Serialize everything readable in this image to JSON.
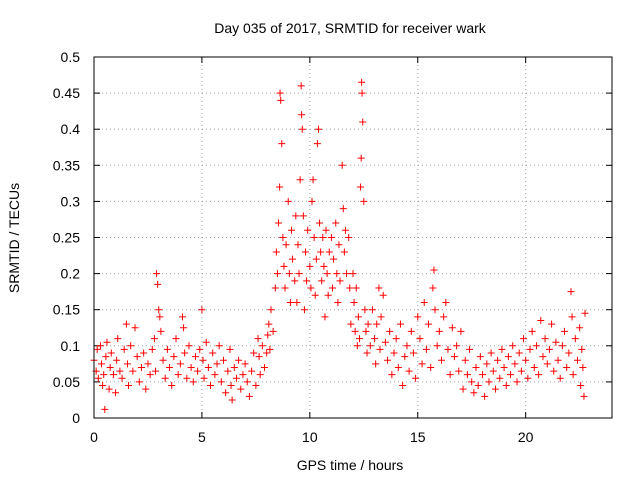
{
  "chart_data": {
    "type": "scatter",
    "title": "Day 035 of 2017, SRMTID for receiver wark",
    "xlabel": "GPS time / hours",
    "ylabel": "SRMTID / TECUs",
    "xlim": [
      0,
      24
    ],
    "ylim": [
      0,
      0.5
    ],
    "xticks": [
      0,
      5,
      10,
      15,
      20
    ],
    "yticks": [
      0,
      0.05,
      0.1,
      0.15,
      0.2,
      0.25,
      0.3,
      0.35,
      0.4,
      0.45,
      0.5
    ],
    "x_tick_labels": [
      "0",
      "5",
      "10",
      "15",
      "20"
    ],
    "y_tick_labels": [
      "0",
      "0.05",
      "0.1",
      "0.15",
      "0.2",
      "0.25",
      "0.3",
      "0.35",
      "0.4",
      "0.45",
      "0.5"
    ],
    "grid": true,
    "marker": "+",
    "series": [
      {
        "name": "SRMTID",
        "color": "#ff0000",
        "points": [
          [
            0.0,
            0.08
          ],
          [
            0.1,
            0.065
          ],
          [
            0.15,
            0.095
          ],
          [
            0.2,
            0.055
          ],
          [
            0.3,
            0.1
          ],
          [
            0.35,
            0.075
          ],
          [
            0.4,
            0.045
          ],
          [
            0.45,
            0.06
          ],
          [
            0.5,
            0.012
          ],
          [
            0.55,
            0.085
          ],
          [
            0.6,
            0.105
          ],
          [
            0.7,
            0.04
          ],
          [
            0.75,
            0.07
          ],
          [
            0.8,
            0.09
          ],
          [
            0.9,
            0.06
          ],
          [
            1.0,
            0.035
          ],
          [
            1.05,
            0.08
          ],
          [
            1.1,
            0.11
          ],
          [
            1.2,
            0.065
          ],
          [
            1.3,
            0.055
          ],
          [
            1.4,
            0.095
          ],
          [
            1.5,
            0.13
          ],
          [
            1.55,
            0.075
          ],
          [
            1.6,
            0.045
          ],
          [
            1.7,
            0.1
          ],
          [
            1.8,
            0.065
          ],
          [
            1.9,
            0.125
          ],
          [
            2.0,
            0.085
          ],
          [
            2.1,
            0.05
          ],
          [
            2.2,
            0.07
          ],
          [
            2.3,
            0.09
          ],
          [
            2.4,
            0.04
          ],
          [
            2.5,
            0.075
          ],
          [
            2.6,
            0.06
          ],
          [
            2.7,
            0.095
          ],
          [
            2.8,
            0.11
          ],
          [
            2.85,
            0.065
          ],
          [
            2.9,
            0.2
          ],
          [
            2.95,
            0.185
          ],
          [
            3.0,
            0.15
          ],
          [
            3.05,
            0.14
          ],
          [
            3.1,
            0.12
          ],
          [
            3.2,
            0.08
          ],
          [
            3.3,
            0.055
          ],
          [
            3.4,
            0.095
          ],
          [
            3.5,
            0.07
          ],
          [
            3.6,
            0.045
          ],
          [
            3.7,
            0.085
          ],
          [
            3.8,
            0.11
          ],
          [
            3.9,
            0.06
          ],
          [
            4.0,
            0.075
          ],
          [
            4.1,
            0.14
          ],
          [
            4.15,
            0.125
          ],
          [
            4.2,
            0.09
          ],
          [
            4.3,
            0.055
          ],
          [
            4.4,
            0.1
          ],
          [
            4.5,
            0.07
          ],
          [
            4.6,
            0.05
          ],
          [
            4.7,
            0.085
          ],
          [
            4.8,
            0.065
          ],
          [
            4.9,
            0.095
          ],
          [
            5.0,
            0.15
          ],
          [
            5.05,
            0.08
          ],
          [
            5.1,
            0.055
          ],
          [
            5.2,
            0.105
          ],
          [
            5.3,
            0.07
          ],
          [
            5.4,
            0.045
          ],
          [
            5.5,
            0.09
          ],
          [
            5.6,
            0.06
          ],
          [
            5.7,
            0.075
          ],
          [
            5.8,
            0.1
          ],
          [
            5.9,
            0.05
          ],
          [
            6.0,
            0.08
          ],
          [
            6.1,
            0.035
          ],
          [
            6.2,
            0.065
          ],
          [
            6.3,
            0.095
          ],
          [
            6.35,
            0.045
          ],
          [
            6.4,
            0.025
          ],
          [
            6.5,
            0.07
          ],
          [
            6.6,
            0.055
          ],
          [
            6.7,
            0.08
          ],
          [
            6.8,
            0.04
          ],
          [
            6.9,
            0.06
          ],
          [
            7.0,
            0.075
          ],
          [
            7.1,
            0.05
          ],
          [
            7.2,
            0.03
          ],
          [
            7.3,
            0.065
          ],
          [
            7.4,
            0.09
          ],
          [
            7.5,
            0.045
          ],
          [
            7.6,
            0.11
          ],
          [
            7.65,
            0.085
          ],
          [
            7.7,
            0.06
          ],
          [
            7.8,
            0.1
          ],
          [
            7.9,
            0.07
          ],
          [
            8.0,
            0.09
          ],
          [
            8.05,
            0.115
          ],
          [
            8.1,
            0.13
          ],
          [
            8.15,
            0.095
          ],
          [
            8.2,
            0.15
          ],
          [
            8.3,
            0.12
          ],
          [
            8.4,
            0.18
          ],
          [
            8.45,
            0.23
          ],
          [
            8.5,
            0.2
          ],
          [
            8.55,
            0.27
          ],
          [
            8.6,
            0.32
          ],
          [
            8.62,
            0.45
          ],
          [
            8.65,
            0.44
          ],
          [
            8.7,
            0.38
          ],
          [
            8.75,
            0.25
          ],
          [
            8.8,
            0.21
          ],
          [
            8.85,
            0.18
          ],
          [
            8.9,
            0.24
          ],
          [
            9.0,
            0.3
          ],
          [
            9.05,
            0.2
          ],
          [
            9.1,
            0.16
          ],
          [
            9.15,
            0.26
          ],
          [
            9.2,
            0.22
          ],
          [
            9.3,
            0.19
          ],
          [
            9.35,
            0.28
          ],
          [
            9.4,
            0.16
          ],
          [
            9.45,
            0.24
          ],
          [
            9.5,
            0.2
          ],
          [
            9.55,
            0.33
          ],
          [
            9.6,
            0.46
          ],
          [
            9.62,
            0.42
          ],
          [
            9.65,
            0.4
          ],
          [
            9.7,
            0.28
          ],
          [
            9.75,
            0.15
          ],
          [
            9.8,
            0.23
          ],
          [
            9.85,
            0.19
          ],
          [
            9.9,
            0.26
          ],
          [
            10.0,
            0.21
          ],
          [
            10.05,
            0.18
          ],
          [
            10.1,
            0.3
          ],
          [
            10.15,
            0.33
          ],
          [
            10.2,
            0.25
          ],
          [
            10.25,
            0.17
          ],
          [
            10.3,
            0.22
          ],
          [
            10.35,
            0.38
          ],
          [
            10.4,
            0.4
          ],
          [
            10.45,
            0.27
          ],
          [
            10.5,
            0.23
          ],
          [
            10.55,
            0.19
          ],
          [
            10.6,
            0.25
          ],
          [
            10.65,
            0.21
          ],
          [
            10.7,
            0.14
          ],
          [
            10.75,
            0.26
          ],
          [
            10.8,
            0.2
          ],
          [
            10.85,
            0.17
          ],
          [
            10.9,
            0.23
          ],
          [
            11.0,
            0.25
          ],
          [
            11.05,
            0.18
          ],
          [
            11.1,
            0.22
          ],
          [
            11.2,
            0.27
          ],
          [
            11.25,
            0.2
          ],
          [
            11.3,
            0.16
          ],
          [
            11.35,
            0.24
          ],
          [
            11.4,
            0.19
          ],
          [
            11.5,
            0.35
          ],
          [
            11.55,
            0.29
          ],
          [
            11.6,
            0.23
          ],
          [
            11.65,
            0.26
          ],
          [
            11.7,
            0.2
          ],
          [
            11.8,
            0.25
          ],
          [
            11.85,
            0.18
          ],
          [
            11.9,
            0.13
          ],
          [
            12.0,
            0.2
          ],
          [
            12.05,
            0.16
          ],
          [
            12.1,
            0.12
          ],
          [
            12.15,
            0.18
          ],
          [
            12.2,
            0.1
          ],
          [
            12.25,
            0.14
          ],
          [
            12.3,
            0.11
          ],
          [
            12.35,
            0.32
          ],
          [
            12.38,
            0.36
          ],
          [
            12.4,
            0.465
          ],
          [
            12.42,
            0.45
          ],
          [
            12.45,
            0.41
          ],
          [
            12.5,
            0.3
          ],
          [
            12.55,
            0.15
          ],
          [
            12.6,
            0.12
          ],
          [
            12.65,
            0.09
          ],
          [
            12.7,
            0.13
          ],
          [
            12.8,
            0.1
          ],
          [
            12.9,
            0.15
          ],
          [
            13.0,
            0.11
          ],
          [
            13.05,
            0.075
          ],
          [
            13.1,
            0.13
          ],
          [
            13.2,
            0.18
          ],
          [
            13.25,
            0.095
          ],
          [
            13.3,
            0.14
          ],
          [
            13.4,
            0.17
          ],
          [
            13.5,
            0.105
          ],
          [
            13.6,
            0.08
          ],
          [
            13.7,
            0.12
          ],
          [
            13.8,
            0.06
          ],
          [
            13.9,
            0.09
          ],
          [
            14.0,
            0.11
          ],
          [
            14.1,
            0.07
          ],
          [
            14.2,
            0.13
          ],
          [
            14.3,
            0.045
          ],
          [
            14.4,
            0.085
          ],
          [
            14.5,
            0.1
          ],
          [
            14.6,
            0.065
          ],
          [
            14.7,
            0.12
          ],
          [
            14.8,
            0.09
          ],
          [
            14.9,
            0.055
          ],
          [
            15.0,
            0.14
          ],
          [
            15.1,
            0.11
          ],
          [
            15.2,
            0.075
          ],
          [
            15.3,
            0.16
          ],
          [
            15.4,
            0.095
          ],
          [
            15.5,
            0.13
          ],
          [
            15.6,
            0.07
          ],
          [
            15.7,
            0.18
          ],
          [
            15.75,
            0.205
          ],
          [
            15.8,
            0.15
          ],
          [
            15.9,
            0.1
          ],
          [
            16.0,
            0.12
          ],
          [
            16.1,
            0.08
          ],
          [
            16.2,
            0.14
          ],
          [
            16.3,
            0.16
          ],
          [
            16.4,
            0.095
          ],
          [
            16.5,
            0.06
          ],
          [
            16.6,
            0.125
          ],
          [
            16.7,
            0.085
          ],
          [
            16.8,
            0.1
          ],
          [
            16.9,
            0.065
          ],
          [
            17.0,
            0.12
          ],
          [
            17.1,
            0.04
          ],
          [
            17.2,
            0.08
          ],
          [
            17.3,
            0.06
          ],
          [
            17.4,
            0.095
          ],
          [
            17.5,
            0.05
          ],
          [
            17.6,
            0.035
          ],
          [
            17.7,
            0.07
          ],
          [
            17.8,
            0.045
          ],
          [
            17.9,
            0.085
          ],
          [
            18.0,
            0.06
          ],
          [
            18.1,
            0.03
          ],
          [
            18.2,
            0.075
          ],
          [
            18.3,
            0.05
          ],
          [
            18.4,
            0.09
          ],
          [
            18.5,
            0.065
          ],
          [
            18.6,
            0.04
          ],
          [
            18.7,
            0.08
          ],
          [
            18.8,
            0.055
          ],
          [
            18.9,
            0.095
          ],
          [
            19.0,
            0.07
          ],
          [
            19.1,
            0.045
          ],
          [
            19.2,
            0.085
          ],
          [
            19.3,
            0.06
          ],
          [
            19.4,
            0.1
          ],
          [
            19.5,
            0.075
          ],
          [
            19.6,
            0.05
          ],
          [
            19.7,
            0.09
          ],
          [
            19.8,
            0.065
          ],
          [
            19.9,
            0.11
          ],
          [
            20.0,
            0.08
          ],
          [
            20.1,
            0.055
          ],
          [
            20.2,
            0.095
          ],
          [
            20.3,
            0.12
          ],
          [
            20.4,
            0.07
          ],
          [
            20.5,
            0.1
          ],
          [
            20.6,
            0.06
          ],
          [
            20.7,
            0.135
          ],
          [
            20.8,
            0.085
          ],
          [
            20.9,
            0.11
          ],
          [
            21.0,
            0.075
          ],
          [
            21.1,
            0.095
          ],
          [
            21.2,
            0.13
          ],
          [
            21.3,
            0.065
          ],
          [
            21.4,
            0.105
          ],
          [
            21.5,
            0.08
          ],
          [
            21.6,
            0.055
          ],
          [
            21.7,
            0.1
          ],
          [
            21.8,
            0.12
          ],
          [
            21.9,
            0.07
          ],
          [
            22.0,
            0.09
          ],
          [
            22.1,
            0.175
          ],
          [
            22.15,
            0.14
          ],
          [
            22.2,
            0.06
          ],
          [
            22.3,
            0.11
          ],
          [
            22.4,
            0.08
          ],
          [
            22.5,
            0.125
          ],
          [
            22.55,
            0.045
          ],
          [
            22.6,
            0.095
          ],
          [
            22.65,
            0.07
          ],
          [
            22.7,
            0.03
          ],
          [
            22.75,
            0.145
          ]
        ]
      }
    ]
  }
}
